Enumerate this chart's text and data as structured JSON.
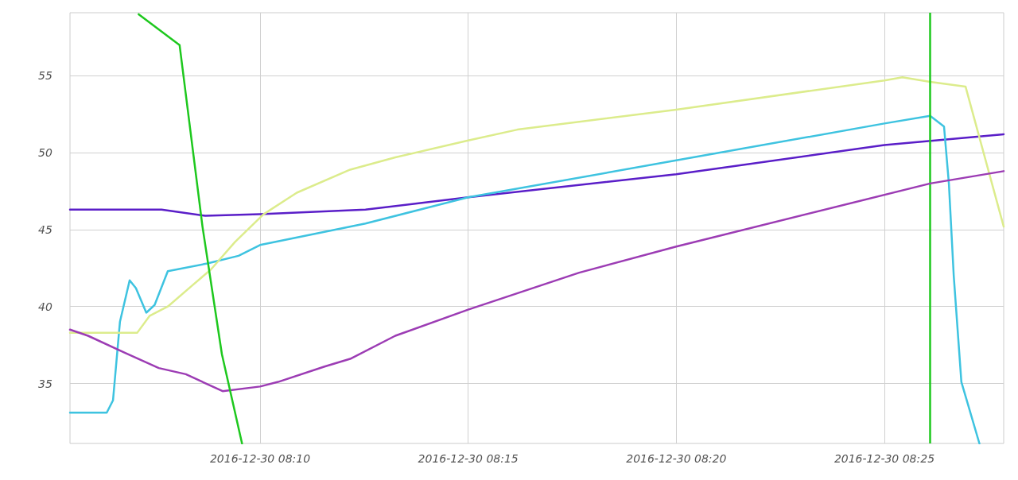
{
  "chart_data": {
    "type": "line",
    "grid": true,
    "xlim": [
      "2016-12-30T08:05:26",
      "2016-12-30T08:27:52"
    ],
    "xticks": [
      {
        "value": "2016-12-30T08:10",
        "label": "2016-12-30 08:10"
      },
      {
        "value": "2016-12-30T08:15",
        "label": "2016-12-30 08:15"
      },
      {
        "value": "2016-12-30T08:20",
        "label": "2016-12-30 08:20"
      },
      {
        "value": "2016-12-30T08:25",
        "label": "2016-12-30 08:25"
      }
    ],
    "ylim": [
      31.1,
      59.1
    ],
    "yticks": [
      35,
      40,
      45,
      50,
      55
    ],
    "series": [
      {
        "color": "#5a1ec8",
        "x": [
          "2016-12-30T08:05:26",
          "2016-12-30T08:07:38",
          "2016-12-30T08:08:41",
          "2016-12-30T08:10",
          "2016-12-30T08:12:32",
          "2016-12-30T08:15",
          "2016-12-30T08:20",
          "2016-12-30T08:25",
          "2016-12-30T08:27:52"
        ],
        "values": [
          46.3,
          46.3,
          45.9,
          46.0,
          46.3,
          47.1,
          48.6,
          50.5,
          51.2
        ]
      },
      {
        "color": "#3ec3e0",
        "x": [
          "2016-12-30T08:05:26",
          "2016-12-30T08:06:19",
          "2016-12-30T08:06:28",
          "2016-12-30T08:06:38",
          "2016-12-30T08:06:52",
          "2016-12-30T08:07:01",
          "2016-12-30T08:07:16",
          "2016-12-30T08:07:28",
          "2016-12-30T08:07:47",
          "2016-12-30T08:08:44",
          "2016-12-30T08:09:29",
          "2016-12-30T08:10",
          "2016-12-30T08:12:32",
          "2016-12-30T08:15",
          "2016-12-30T08:20",
          "2016-12-30T08:25",
          "2016-12-30T08:26:06",
          "2016-12-30T08:26:26",
          "2016-12-30T08:26:33",
          "2016-12-30T08:26:40",
          "2016-12-30T08:26:51",
          "2016-12-30T08:27:17"
        ],
        "values": [
          33.1,
          33.1,
          33.9,
          39.0,
          41.7,
          41.2,
          39.6,
          40.1,
          42.3,
          42.8,
          43.3,
          44.0,
          45.4,
          47.1,
          49.5,
          51.9,
          52.4,
          51.7,
          48.0,
          42.0,
          35.1,
          31.1
        ]
      },
      {
        "color": "#dcec8c",
        "x": [
          "2016-12-30T08:05:26",
          "2016-12-30T08:07:03",
          "2016-12-30T08:07:21",
          "2016-12-30T08:07:47",
          "2016-12-30T08:08:23",
          "2016-12-30T08:08:49",
          "2016-12-30T08:09:24",
          "2016-12-30T08:10:05",
          "2016-12-30T08:10:53",
          "2016-12-30T08:12:10",
          "2016-12-30T08:13:15",
          "2016-12-30T08:15",
          "2016-12-30T08:16:11",
          "2016-12-30T08:20",
          "2016-12-30T08:25",
          "2016-12-30T08:25:26",
          "2016-12-30T08:26:06",
          "2016-12-30T08:26:57",
          "2016-12-30T08:27:52"
        ],
        "values": [
          38.3,
          38.3,
          39.4,
          40.0,
          41.4,
          42.4,
          44.2,
          46.0,
          47.4,
          48.9,
          49.7,
          50.8,
          51.5,
          52.8,
          54.7,
          54.9,
          54.6,
          54.3,
          45.2
        ]
      },
      {
        "color": "#9c3cb4",
        "x": [
          "2016-12-30T08:05:26",
          "2016-12-30T08:05:52",
          "2016-12-30T08:06:45",
          "2016-12-30T08:07:34",
          "2016-12-30T08:08:13",
          "2016-12-30T08:09:06",
          "2016-12-30T08:10",
          "2016-12-30T08:10:26",
          "2016-12-30T08:11:33",
          "2016-12-30T08:12:10",
          "2016-12-30T08:13:15",
          "2016-12-30T08:15",
          "2016-12-30T08:17:40",
          "2016-12-30T08:20",
          "2016-12-30T08:26:06",
          "2016-12-30T08:27:52"
        ],
        "values": [
          38.5,
          38.1,
          37.0,
          36.0,
          35.6,
          34.5,
          34.8,
          35.1,
          36.1,
          36.6,
          38.1,
          39.8,
          42.2,
          43.9,
          48.0,
          48.8
        ]
      },
      {
        "color": "#1ec81e",
        "x": [
          "2016-12-30T08:07:05",
          "2016-12-30T08:08:04",
          "2016-12-30T08:08:37",
          "2016-12-30T08:09:05",
          "2016-12-30T08:09:34"
        ],
        "values": [
          59.0,
          57.0,
          45.2,
          36.9,
          31.1
        ]
      }
    ],
    "ref_lines": [
      {
        "axis": "x",
        "value": "2016-12-30T08:26:06",
        "color": "#1ec81e"
      }
    ]
  }
}
